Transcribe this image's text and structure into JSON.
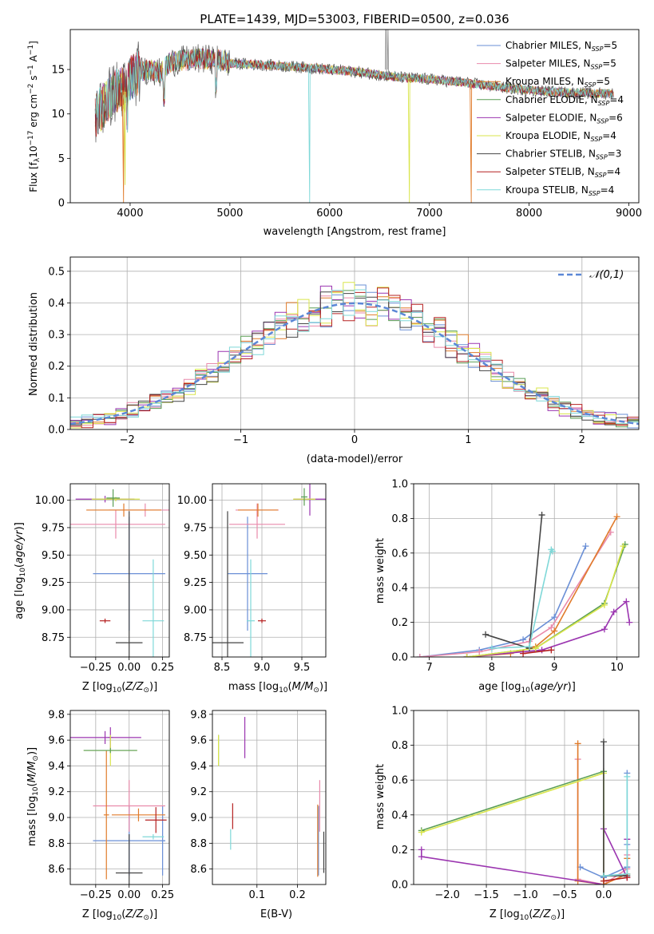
{
  "figure": {
    "title": "PLATE=1439, MJD=53003, FIBERID=0500, z=0.036"
  },
  "models": [
    {
      "name": "Chabrier MILES",
      "nssp": "5",
      "color": "#6a8fd6"
    },
    {
      "name": "Salpeter MILES",
      "nssp": "5",
      "color": "#e98aab"
    },
    {
      "name": "Kroupa MILES",
      "nssp": "5",
      "color": "#e07b2b"
    },
    {
      "name": "Chabrier ELODIE",
      "nssp": "4",
      "color": "#5a9e55"
    },
    {
      "name": "Salpeter ELODIE",
      "nssp": "6",
      "color": "#9b35b0"
    },
    {
      "name": "Kroupa ELODIE",
      "nssp": "4",
      "color": "#d9e54b"
    },
    {
      "name": "Chabrier STELIB",
      "nssp": "3",
      "color": "#444444"
    },
    {
      "name": "Salpeter STELIB",
      "nssp": "4",
      "color": "#b52020"
    },
    {
      "name": "Kroupa STELIB",
      "nssp": "4",
      "color": "#7fd8d8"
    }
  ],
  "chart_data": [
    {
      "id": "spectrum",
      "type": "line",
      "xlabel": "wavelength [Angstrom, rest frame]",
      "ylabel": "Flux [f_λ10^-17 erg cm^-2 s^-1 A^-1]",
      "xlim": [
        3400,
        9100
      ],
      "ylim": [
        0,
        19.5
      ],
      "xticks": [
        4000,
        5000,
        6000,
        7000,
        8000,
        9000
      ],
      "yticks": [
        0,
        5,
        10,
        15
      ],
      "legend": "top-right",
      "continuum": {
        "x": [
          3650,
          3700,
          3800,
          3900,
          3950,
          4000,
          4100,
          4200,
          4300,
          4400,
          4500,
          4700,
          4900,
          5000,
          5200,
          5500,
          5800,
          6000,
          6300,
          6500,
          6700,
          7000,
          7300,
          7500,
          7800,
          8100,
          8400,
          8700,
          8850
        ],
        "y": [
          9.8,
          10.5,
          12.0,
          13.0,
          12.5,
          14.0,
          14.8,
          15.0,
          14.6,
          15.8,
          16.0,
          16.2,
          16.1,
          15.7,
          15.6,
          15.4,
          15.2,
          15.0,
          14.7,
          14.4,
          14.1,
          13.9,
          13.6,
          13.3,
          12.9,
          12.6,
          12.4,
          12.3,
          12.3
        ]
      },
      "dips": [
        {
          "x": 3934,
          "y": 0,
          "color": "#e07b2b"
        },
        {
          "x": 5800,
          "y": 0,
          "color": "#7fd8d8"
        },
        {
          "x": 6800,
          "y": 0,
          "color": "#d9e54b"
        },
        {
          "x": 7420,
          "y": 0,
          "color": "#e07b2b"
        },
        {
          "x": 3950,
          "y": 2.0,
          "color": "#d9e54b"
        }
      ]
    },
    {
      "id": "residual-histogram",
      "type": "area",
      "xlabel": "(data-model)/error",
      "ylabel": "Normed distribution",
      "xlim": [
        -2.5,
        2.5
      ],
      "ylim": [
        0,
        0.545
      ],
      "xticks": [
        -2,
        -1,
        0,
        1,
        2
      ],
      "yticks": [
        0.0,
        0.1,
        0.2,
        0.3,
        0.4,
        0.5
      ],
      "bin_width": 0.1,
      "grid": true,
      "legend": "top-right",
      "legend_label": "𝒩(0,1)",
      "reference_curve": {
        "type": "gaussian",
        "mean": 0,
        "sigma": 1,
        "color": "#5b87d6"
      }
    },
    {
      "id": "age-vs-Z",
      "type": "scatter",
      "xlabel": "Z [log10(Z/Z⊙)]",
      "ylabel": "age [log10(age/yr)]",
      "xlim": [
        -0.44,
        0.3
      ],
      "ylim": [
        8.57,
        10.15
      ],
      "xticks": [
        -0.25,
        0.0,
        0.25
      ],
      "yticks": [
        8.75,
        9.0,
        9.25,
        9.5,
        9.75,
        10.0
      ],
      "points": [
        {
          "x": 0.0,
          "y": 9.33,
          "xerr": 0.27,
          "yerr": 0.52,
          "color": "#6a8fd6"
        },
        {
          "x": -0.1,
          "y": 9.78,
          "xerr": 0.37,
          "yerr": 0.13,
          "color": "#e98aab"
        },
        {
          "x": 0.12,
          "y": 9.91,
          "xerr": 0.27,
          "yerr": 0.06,
          "color": "#e98aab"
        },
        {
          "x": -0.04,
          "y": 9.91,
          "xerr": 0.28,
          "yerr": 0.06,
          "color": "#e07b2b"
        },
        {
          "x": -0.18,
          "y": 10.01,
          "xerr": 0.22,
          "yerr": 0.03,
          "color": "#9b35b0"
        },
        {
          "x": -0.1,
          "y": 10.01,
          "xerr": 0.18,
          "yerr": 0.02,
          "color": "#d9e54b"
        },
        {
          "x": -0.12,
          "y": 10.02,
          "xerr": 0.05,
          "yerr": 0.08,
          "color": "#5a9e55"
        },
        {
          "x": 0.0,
          "y": 8.7,
          "xerr": 0.1,
          "yerr": 1.2,
          "color": "#444444"
        },
        {
          "x": 0.18,
          "y": 8.9,
          "xerr": 0.08,
          "yerr": 0.56,
          "color": "#7fd8d8"
        },
        {
          "x": -0.18,
          "y": 8.9,
          "xerr": 0.04,
          "yerr": 0.02,
          "color": "#b52020"
        }
      ]
    },
    {
      "id": "age-vs-mass",
      "type": "scatter",
      "xlabel": "mass [log10(M/M⊙)]",
      "ylabel": "",
      "xlim": [
        8.38,
        9.8
      ],
      "ylim": [
        8.57,
        10.15
      ],
      "xticks": [
        8.5,
        9.0,
        9.5
      ],
      "yticks": [
        8.75,
        9.0,
        9.25,
        9.5,
        9.75,
        10.0
      ],
      "points": [
        {
          "x": 8.82,
          "y": 9.33,
          "xerr": 0.25,
          "yerr": 0.52,
          "color": "#6a8fd6"
        },
        {
          "x": 8.94,
          "y": 9.78,
          "xerr": 0.35,
          "yerr": 0.13,
          "color": "#e98aab"
        },
        {
          "x": 8.94,
          "y": 9.91,
          "xerr": 0.27,
          "yerr": 0.06,
          "color": "#e98aab"
        },
        {
          "x": 8.95,
          "y": 9.91,
          "xerr": 0.25,
          "yerr": 0.06,
          "color": "#e07b2b"
        },
        {
          "x": 9.6,
          "y": 10.01,
          "xerr": 0.2,
          "yerr": 0.15,
          "color": "#9b35b0"
        },
        {
          "x": 9.53,
          "y": 10.01,
          "xerr": 0.14,
          "yerr": 0.02,
          "color": "#d9e54b"
        },
        {
          "x": 9.53,
          "y": 10.03,
          "xerr": 0.04,
          "yerr": 0.08,
          "color": "#5a9e55"
        },
        {
          "x": 8.57,
          "y": 8.7,
          "xerr": 0.2,
          "yerr": 1.2,
          "color": "#444444"
        },
        {
          "x": 8.86,
          "y": 8.9,
          "xerr": 0.05,
          "yerr": 0.56,
          "color": "#7fd8d8"
        },
        {
          "x": 9.0,
          "y": 8.9,
          "xerr": 0.05,
          "yerr": 0.02,
          "color": "#b52020"
        }
      ]
    },
    {
      "id": "massweight-vs-age",
      "type": "line",
      "xlabel": "age [log10(age/yr)]",
      "ylabel": "mass weight",
      "xlim": [
        6.75,
        10.35
      ],
      "ylim": [
        0,
        1.0
      ],
      "xticks": [
        7,
        8,
        9,
        10
      ],
      "yticks": [
        0.0,
        0.2,
        0.4,
        0.6,
        0.8,
        1.0
      ],
      "series": [
        {
          "color": "#6a8fd6",
          "x": [
            6.85,
            7.8,
            8.5,
            9.0,
            9.5
          ],
          "y": [
            0.0,
            0.04,
            0.1,
            0.23,
            0.64
          ]
        },
        {
          "color": "#e98aab",
          "x": [
            6.85,
            7.8,
            8.6,
            8.95,
            9.9
          ],
          "y": [
            0.0,
            0.03,
            0.09,
            0.17,
            0.72
          ]
        },
        {
          "color": "#e07b2b",
          "x": [
            7.6,
            8.3,
            8.7,
            9.0,
            10.0
          ],
          "y": [
            0.0,
            0.02,
            0.06,
            0.15,
            0.81
          ]
        },
        {
          "color": "#5a9e55",
          "x": [
            7.6,
            8.7,
            9.8,
            10.13
          ],
          "y": [
            0.0,
            0.05,
            0.31,
            0.65
          ]
        },
        {
          "color": "#9b35b0",
          "x": [
            7.6,
            8.8,
            9.8,
            9.95,
            10.15,
            10.2
          ],
          "y": [
            0.0,
            0.04,
            0.16,
            0.26,
            0.32,
            0.2
          ]
        },
        {
          "color": "#d9e54b",
          "x": [
            7.6,
            8.7,
            9.8,
            10.1
          ],
          "y": [
            0.0,
            0.05,
            0.3,
            0.64
          ]
        },
        {
          "color": "#444444",
          "x": [
            7.9,
            8.6,
            8.8
          ],
          "y": [
            0.13,
            0.05,
            0.82
          ]
        },
        {
          "color": "#7fd8d8",
          "x": [
            8.0,
            8.6,
            8.95,
            8.97
          ],
          "y": [
            0.05,
            0.06,
            0.62,
            0.61
          ]
        },
        {
          "color": "#b52020",
          "x": [
            8.5,
            8.95
          ],
          "y": [
            0.02,
            0.04
          ]
        }
      ]
    },
    {
      "id": "mass-vs-Z",
      "type": "scatter",
      "xlabel": "Z [log10(Z/Z⊙)]",
      "ylabel": "mass [log10(M/M⊙)]",
      "xlim": [
        -0.44,
        0.3
      ],
      "ylim": [
        8.48,
        9.83
      ],
      "xticks": [
        -0.25,
        0.0,
        0.25
      ],
      "yticks": [
        8.6,
        8.8,
        9.0,
        9.2,
        9.4,
        9.6,
        9.8
      ],
      "points": [
        {
          "x": 0.0,
          "y": 8.82,
          "xerr": 0.27,
          "yerr": 0.27,
          "color": "#6a8fd6"
        },
        {
          "x": 0.25,
          "y": 8.82,
          "xerr": 0.02,
          "yerr": 0.27,
          "color": "#6a8fd6"
        },
        {
          "x": 0.0,
          "y": 9.09,
          "xerr": 0.27,
          "yerr": 0.2,
          "color": "#e98aab"
        },
        {
          "x": 0.07,
          "y": 9.02,
          "xerr": 0.2,
          "yerr": 0.05,
          "color": "#e07b2b"
        },
        {
          "x": -0.17,
          "y": 9.02,
          "xerr": 0.02,
          "yerr": 0.5,
          "color": "#e07b2b"
        },
        {
          "x": -0.18,
          "y": 9.62,
          "xerr": 0.27,
          "yerr": 0.05,
          "color": "#9b35b0"
        },
        {
          "x": -0.14,
          "y": 9.62,
          "xerr": 0.02,
          "yerr": 0.08,
          "color": "#9b35b0"
        },
        {
          "x": -0.14,
          "y": 9.52,
          "xerr": 0.2,
          "yerr": 0.12,
          "color": "#d9e54b"
        },
        {
          "x": -0.14,
          "y": 9.52,
          "xerr": 0.2,
          "yerr": 0.02,
          "color": "#5a9e55"
        },
        {
          "x": 0.0,
          "y": 8.57,
          "xerr": 0.1,
          "yerr": 0.3,
          "color": "#444444"
        },
        {
          "x": 0.18,
          "y": 8.85,
          "xerr": 0.08,
          "yerr": 0.02,
          "color": "#7fd8d8"
        },
        {
          "x": 0.2,
          "y": 8.98,
          "xerr": 0.08,
          "yerr": 0.1,
          "color": "#b52020"
        }
      ]
    },
    {
      "id": "mass-vs-EBV",
      "type": "scatter",
      "xlabel": "E(B-V)",
      "ylabel": "",
      "xlim": [
        -0.01,
        0.27
      ],
      "ylim": [
        8.48,
        9.83
      ],
      "xticks": [
        0.1,
        0.2
      ],
      "yticks": [
        8.6,
        8.8,
        9.0,
        9.2,
        9.4,
        9.6,
        9.8
      ],
      "points": [
        {
          "x": 0.252,
          "y": 8.82,
          "xerr": 0,
          "yerr": 0.27,
          "color": "#6a8fd6"
        },
        {
          "x": 0.255,
          "y": 9.09,
          "xerr": 0,
          "yerr": 0.2,
          "color": "#e98aab"
        },
        {
          "x": 0.25,
          "y": 8.82,
          "xerr": 0,
          "yerr": 0.28,
          "color": "#e07b2b"
        },
        {
          "x": 0.005,
          "y": 9.52,
          "xerr": 0,
          "yerr": 0.12,
          "color": "#5a9e55"
        },
        {
          "x": 0.07,
          "y": 9.62,
          "xerr": 0,
          "yerr": 0.16,
          "color": "#9b35b0"
        },
        {
          "x": 0.005,
          "y": 9.52,
          "xerr": 0,
          "yerr": 0.12,
          "color": "#d9e54b"
        },
        {
          "x": 0.265,
          "y": 8.73,
          "xerr": 0,
          "yerr": 0.16,
          "color": "#444444"
        },
        {
          "x": 0.04,
          "y": 9.01,
          "xerr": 0,
          "yerr": 0.1,
          "color": "#b52020"
        },
        {
          "x": 0.035,
          "y": 8.83,
          "xerr": 0,
          "yerr": 0.08,
          "color": "#7fd8d8"
        }
      ]
    },
    {
      "id": "massweight-vs-Z",
      "type": "line",
      "xlabel": "Z [log10(Z/Z⊙)]",
      "ylabel": "mass weight",
      "xlim": [
        -2.43,
        0.45
      ],
      "ylim": [
        0,
        1.0
      ],
      "xticks": [
        -2.0,
        -1.5,
        -1.0,
        -0.5,
        0.0
      ],
      "tick_labels": [
        "−2.0",
        "−1.5",
        "−1.0",
        "−0.5",
        "0.0"
      ],
      "yticks": [
        0.0,
        0.2,
        0.4,
        0.6,
        0.8,
        1.0
      ],
      "series": [
        {
          "color": "#6a8fd6",
          "x": [
            0.3,
            0.3,
            0.3,
            0.0,
            -0.3
          ],
          "y": [
            0.64,
            0.23,
            0.1,
            0.04,
            0.1
          ]
        },
        {
          "color": "#e98aab",
          "x": [
            -0.33,
            -0.33,
            0.0,
            0.3,
            0.3
          ],
          "y": [
            0.72,
            0.03,
            0.0,
            0.09,
            0.17
          ]
        },
        {
          "color": "#e07b2b",
          "x": [
            -0.33,
            -0.33,
            0.0,
            0.3,
            0.3
          ],
          "y": [
            0.81,
            0.02,
            0.0,
            0.06,
            0.15
          ]
        },
        {
          "color": "#5a9e55",
          "x": [
            -2.33,
            0.0,
            0.0
          ],
          "y": [
            0.31,
            0.65,
            0.0
          ]
        },
        {
          "color": "#9b35b0",
          "x": [
            -2.33,
            -2.33,
            0.0,
            0.0,
            0.3,
            0.3
          ],
          "y": [
            0.2,
            0.16,
            0.0,
            0.32,
            0.04,
            0.26
          ]
        },
        {
          "color": "#d9e54b",
          "x": [
            -2.33,
            0.0,
            0.0
          ],
          "y": [
            0.3,
            0.64,
            0.0
          ]
        },
        {
          "color": "#444444",
          "x": [
            0.0,
            0.0,
            0.3
          ],
          "y": [
            0.82,
            0.05,
            0.05
          ]
        },
        {
          "color": "#7fd8d8",
          "x": [
            0.3,
            0.3,
            0.0
          ],
          "y": [
            0.62,
            0.06,
            0.05
          ]
        },
        {
          "color": "#b52020",
          "x": [
            0.0,
            0.3
          ],
          "y": [
            0.02,
            0.04
          ]
        }
      ]
    }
  ]
}
